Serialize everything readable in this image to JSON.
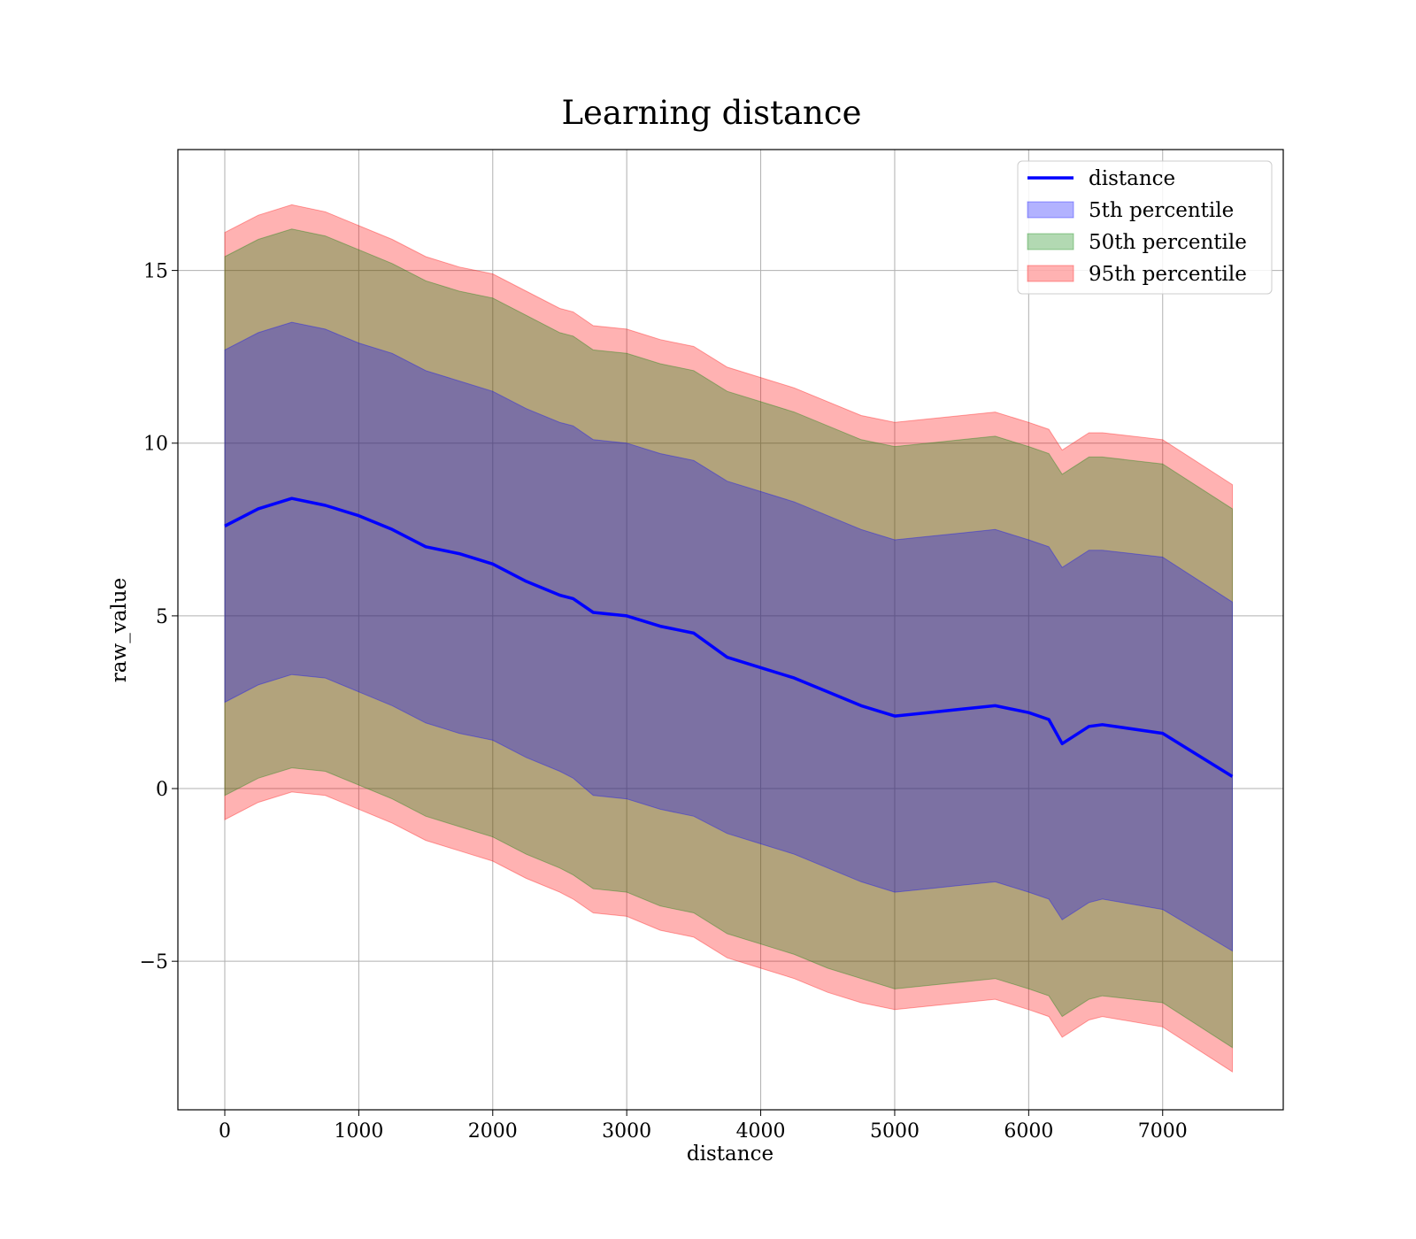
{
  "chart_data": {
    "type": "area",
    "title": "Learning distance",
    "xlabel": "distance",
    "ylabel": "raw_value",
    "xlim": [
      -350,
      7900
    ],
    "ylim": [
      -9.3,
      18.5
    ],
    "x_ticks": [
      0,
      1000,
      2000,
      3000,
      4000,
      5000,
      6000,
      7000
    ],
    "x_tick_labels": [
      "0",
      "1000",
      "2000",
      "3000",
      "4000",
      "5000",
      "6000",
      "7000"
    ],
    "y_ticks": [
      -5,
      0,
      5,
      10,
      15
    ],
    "y_tick_labels": [
      "−5",
      "0",
      "5",
      "10",
      "15"
    ],
    "grid": true,
    "legend_position": "top-right",
    "colors": {
      "line": "#0000ff",
      "band_5th": "#0000ff",
      "band_50th": "#008000",
      "band_95th": "#ff0000"
    },
    "x": [
      0,
      250,
      500,
      750,
      1000,
      1250,
      1500,
      1750,
      2000,
      2250,
      2500,
      2600,
      2750,
      3000,
      3250,
      3500,
      3750,
      4000,
      4250,
      4500,
      4750,
      5000,
      5250,
      5500,
      5750,
      6000,
      6150,
      6250,
      6450,
      6550,
      7000,
      7520
    ],
    "series": [
      {
        "name": "distance",
        "kind": "line",
        "values": [
          7.6,
          8.1,
          8.4,
          8.2,
          7.9,
          7.5,
          7.0,
          6.8,
          6.5,
          6.0,
          5.6,
          5.5,
          5.1,
          5.0,
          4.7,
          4.5,
          3.8,
          3.5,
          3.2,
          2.8,
          2.4,
          2.1,
          2.2,
          2.3,
          2.4,
          2.2,
          2.0,
          1.3,
          1.8,
          1.85,
          1.6,
          0.35
        ]
      },
      {
        "name": "5th percentile",
        "kind": "band",
        "lower": [
          2.5,
          3.0,
          3.3,
          3.2,
          2.8,
          2.4,
          1.9,
          1.6,
          1.4,
          0.9,
          0.5,
          0.3,
          -0.2,
          -0.3,
          -0.6,
          -0.8,
          -1.3,
          -1.6,
          -1.9,
          -2.3,
          -2.7,
          -3.0,
          -2.9,
          -2.8,
          -2.7,
          -3.0,
          -3.2,
          -3.8,
          -3.3,
          -3.2,
          -3.5,
          -4.7
        ],
        "upper": [
          12.7,
          13.2,
          13.5,
          13.3,
          12.9,
          12.6,
          12.1,
          11.8,
          11.5,
          11.0,
          10.6,
          10.5,
          10.1,
          10.0,
          9.7,
          9.5,
          8.9,
          8.6,
          8.3,
          7.9,
          7.5,
          7.2,
          7.3,
          7.4,
          7.5,
          7.2,
          7.0,
          6.4,
          6.9,
          6.9,
          6.7,
          5.4
        ]
      },
      {
        "name": "50th percentile",
        "kind": "band",
        "lower": [
          -0.2,
          0.3,
          0.6,
          0.5,
          0.1,
          -0.3,
          -0.8,
          -1.1,
          -1.4,
          -1.9,
          -2.3,
          -2.5,
          -2.9,
          -3.0,
          -3.4,
          -3.6,
          -4.2,
          -4.5,
          -4.8,
          -5.2,
          -5.5,
          -5.8,
          -5.7,
          -5.6,
          -5.5,
          -5.8,
          -6.0,
          -6.6,
          -6.1,
          -6.0,
          -6.2,
          -7.5
        ],
        "upper": [
          15.4,
          15.9,
          16.2,
          16.0,
          15.6,
          15.2,
          14.7,
          14.4,
          14.2,
          13.7,
          13.2,
          13.1,
          12.7,
          12.6,
          12.3,
          12.1,
          11.5,
          11.2,
          10.9,
          10.5,
          10.1,
          9.9,
          10.0,
          10.1,
          10.2,
          9.9,
          9.7,
          9.1,
          9.6,
          9.6,
          9.4,
          8.1
        ]
      },
      {
        "name": "95th percentile",
        "kind": "band",
        "lower": [
          -0.9,
          -0.4,
          -0.1,
          -0.2,
          -0.6,
          -1.0,
          -1.5,
          -1.8,
          -2.1,
          -2.6,
          -3.0,
          -3.2,
          -3.6,
          -3.7,
          -4.1,
          -4.3,
          -4.9,
          -5.2,
          -5.5,
          -5.9,
          -6.2,
          -6.4,
          -6.3,
          -6.2,
          -6.1,
          -6.4,
          -6.6,
          -7.2,
          -6.7,
          -6.6,
          -6.9,
          -8.2
        ],
        "upper": [
          16.1,
          16.6,
          16.9,
          16.7,
          16.3,
          15.9,
          15.4,
          15.1,
          14.9,
          14.4,
          13.9,
          13.8,
          13.4,
          13.3,
          13.0,
          12.8,
          12.2,
          11.9,
          11.6,
          11.2,
          10.8,
          10.6,
          10.7,
          10.8,
          10.9,
          10.6,
          10.4,
          9.8,
          10.3,
          10.3,
          10.1,
          8.8
        ]
      }
    ]
  }
}
